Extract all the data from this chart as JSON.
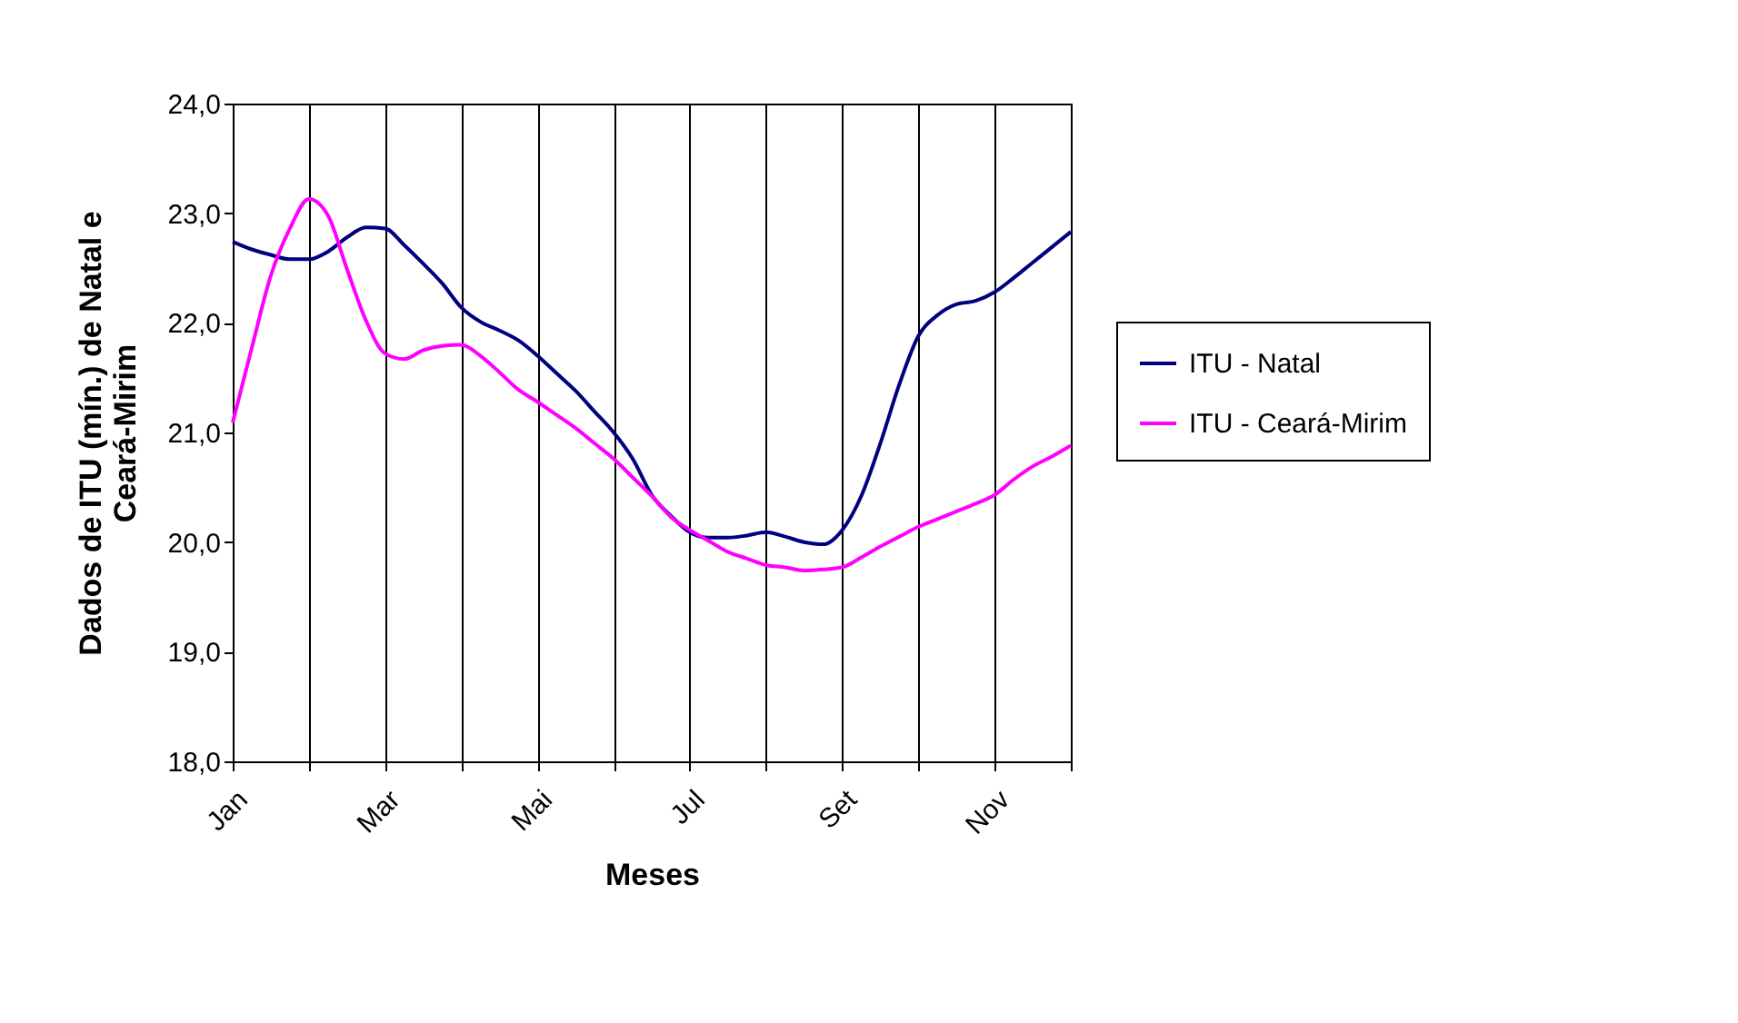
{
  "chart_data": {
    "type": "line",
    "xlabel": "Meses",
    "ylabel": "Dados de ITU (mín.) de Natal e Ceará-Mirim",
    "categories": [
      "Jan",
      null,
      null,
      null,
      null,
      null,
      null,
      null,
      "Mar",
      null,
      null,
      null,
      null,
      null,
      null,
      null,
      "Mai",
      null,
      null,
      null,
      null,
      null,
      null,
      null,
      "Jul",
      null,
      null,
      null,
      null,
      null,
      null,
      null,
      "Set",
      null,
      null,
      null,
      null,
      null,
      null,
      null,
      "Nov",
      null,
      null,
      null,
      null
    ],
    "ylim": [
      18,
      24
    ],
    "yticks": [
      {
        "value": 18,
        "label": "18,0"
      },
      {
        "value": 19,
        "label": "19,0"
      },
      {
        "value": 20,
        "label": "20,0"
      },
      {
        "value": 21,
        "label": "21,0"
      },
      {
        "value": 22,
        "label": "22,0"
      },
      {
        "value": 23,
        "label": "23,0"
      },
      {
        "value": 24,
        "label": "24,0"
      }
    ],
    "grid": "x",
    "legend": "right",
    "marker": "none",
    "line_style": "solid",
    "series": [
      {
        "name": "ITU - Natal",
        "color": "#000080",
        "values": [
          22.74,
          22.67,
          22.62,
          22.58,
          22.58,
          22.65,
          22.78,
          22.87,
          22.86,
          22.71,
          22.54,
          22.36,
          22.14,
          22.01,
          21.93,
          21.84,
          21.7,
          21.54,
          21.38,
          21.19,
          21.0,
          20.76,
          20.43,
          20.24,
          20.09,
          20.04,
          20.04,
          20.06,
          20.09,
          20.05,
          20.0,
          19.98,
          20.11,
          20.42,
          20.9,
          21.44,
          21.88,
          22.07,
          22.17,
          22.2,
          22.28,
          22.41,
          22.55,
          22.69,
          22.83
        ]
      },
      {
        "name": "ITU - Ceará-Mirim",
        "color": "#ff00ff",
        "values": [
          21.09,
          21.77,
          22.43,
          22.86,
          23.13,
          22.98,
          22.49,
          22.02,
          21.72,
          21.67,
          21.75,
          21.79,
          21.8,
          21.7,
          21.55,
          21.39,
          21.28,
          21.16,
          21.04,
          20.9,
          20.76,
          20.59,
          20.42,
          20.23,
          20.11,
          20.01,
          19.91,
          19.85,
          19.79,
          19.77,
          19.74,
          19.75,
          19.77,
          19.86,
          19.96,
          20.05,
          20.14,
          20.21,
          20.28,
          20.35,
          20.43,
          20.57,
          20.69,
          20.78,
          20.88
        ]
      }
    ]
  }
}
